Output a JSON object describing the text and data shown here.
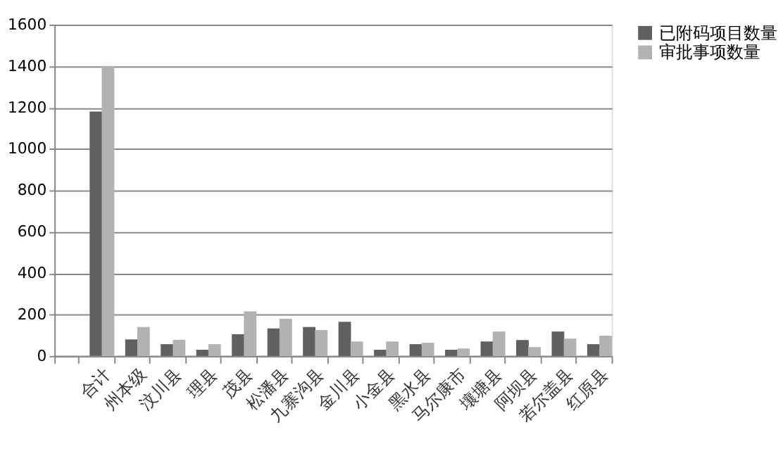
{
  "chart_data": {
    "type": "bar",
    "categories": [
      null,
      "合计",
      "州本级",
      "汶川县",
      "理县",
      "茂县",
      "松潘县",
      "九寨沟县",
      "金川县",
      "小金县",
      "黑水县",
      "马尔康市",
      "壤塘县",
      "阿坝县",
      "若尔盖县",
      "红原县"
    ],
    "series": [
      {
        "name": "已附码项目数量",
        "color": "#606060",
        "values": [
          null,
          1180,
          80,
          57,
          30,
          105,
          133,
          140,
          165,
          30,
          57,
          30,
          70,
          77,
          118,
          57
        ]
      },
      {
        "name": "审批事项数量",
        "color": "#b2b2b2",
        "values": [
          null,
          1400,
          140,
          78,
          57,
          215,
          180,
          125,
          70,
          70,
          64,
          36,
          118,
          43,
          84,
          98
        ]
      }
    ],
    "ylim": [
      0,
      1600
    ],
    "yticks": [
      0,
      200,
      400,
      600,
      800,
      1000,
      1200,
      1400,
      1600
    ],
    "grid": "y",
    "legend": "right"
  }
}
